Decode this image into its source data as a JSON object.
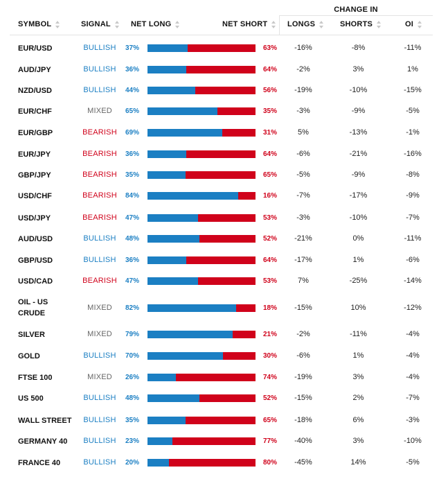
{
  "header": {
    "change_in": "CHANGE IN",
    "symbol": "SYMBOL",
    "signal": "SIGNAL",
    "net_long": "NET LONG",
    "net_short": "NET SHORT",
    "longs": "LONGS",
    "shorts": "SHORTS",
    "oi": "OI"
  },
  "colors": {
    "long": "#1b7fc3",
    "short": "#d0021b",
    "mixed": "#666666"
  },
  "rows": [
    {
      "symbol": "EUR/USD",
      "signal": "BULLISH",
      "net_long": "37%",
      "net_short": "63%",
      "long_pct": 37,
      "longs": "-16%",
      "shorts": "-8%",
      "oi": "-11%"
    },
    {
      "symbol": "AUD/JPY",
      "signal": "BULLISH",
      "net_long": "36%",
      "net_short": "64%",
      "long_pct": 36,
      "longs": "-2%",
      "shorts": "3%",
      "oi": "1%"
    },
    {
      "symbol": "NZD/USD",
      "signal": "BULLISH",
      "net_long": "44%",
      "net_short": "56%",
      "long_pct": 44,
      "longs": "-19%",
      "shorts": "-10%",
      "oi": "-15%"
    },
    {
      "symbol": "EUR/CHF",
      "signal": "MIXED",
      "net_long": "65%",
      "net_short": "35%",
      "long_pct": 65,
      "longs": "-3%",
      "shorts": "-9%",
      "oi": "-5%"
    },
    {
      "symbol": "EUR/GBP",
      "signal": "BEARISH",
      "net_long": "69%",
      "net_short": "31%",
      "long_pct": 69,
      "longs": "5%",
      "shorts": "-13%",
      "oi": "-1%"
    },
    {
      "symbol": "EUR/JPY",
      "signal": "BEARISH",
      "net_long": "36%",
      "net_short": "64%",
      "long_pct": 36,
      "longs": "-6%",
      "shorts": "-21%",
      "oi": "-16%"
    },
    {
      "symbol": "GBP/JPY",
      "signal": "BEARISH",
      "net_long": "35%",
      "net_short": "65%",
      "long_pct": 35,
      "longs": "-5%",
      "shorts": "-9%",
      "oi": "-8%"
    },
    {
      "symbol": "USD/CHF",
      "signal": "BEARISH",
      "net_long": "84%",
      "net_short": "16%",
      "long_pct": 84,
      "longs": "-7%",
      "shorts": "-17%",
      "oi": "-9%"
    },
    {
      "symbol": "USD/JPY",
      "signal": "BEARISH",
      "net_long": "47%",
      "net_short": "53%",
      "long_pct": 47,
      "longs": "-3%",
      "shorts": "-10%",
      "oi": "-7%"
    },
    {
      "symbol": "AUD/USD",
      "signal": "BULLISH",
      "net_long": "48%",
      "net_short": "52%",
      "long_pct": 48,
      "longs": "-21%",
      "shorts": "0%",
      "oi": "-11%"
    },
    {
      "symbol": "GBP/USD",
      "signal": "BULLISH",
      "net_long": "36%",
      "net_short": "64%",
      "long_pct": 36,
      "longs": "-17%",
      "shorts": "1%",
      "oi": "-6%"
    },
    {
      "symbol": "USD/CAD",
      "signal": "BEARISH",
      "net_long": "47%",
      "net_short": "53%",
      "long_pct": 47,
      "longs": "7%",
      "shorts": "-25%",
      "oi": "-14%"
    },
    {
      "symbol": "OIL - US CRUDE",
      "signal": "MIXED",
      "net_long": "82%",
      "net_short": "18%",
      "long_pct": 82,
      "longs": "-15%",
      "shorts": "10%",
      "oi": "-12%"
    },
    {
      "symbol": "SILVER",
      "signal": "MIXED",
      "net_long": "79%",
      "net_short": "21%",
      "long_pct": 79,
      "longs": "-2%",
      "shorts": "-11%",
      "oi": "-4%"
    },
    {
      "symbol": "GOLD",
      "signal": "BULLISH",
      "net_long": "70%",
      "net_short": "30%",
      "long_pct": 70,
      "longs": "-6%",
      "shorts": "1%",
      "oi": "-4%"
    },
    {
      "symbol": "FTSE 100",
      "signal": "MIXED",
      "net_long": "26%",
      "net_short": "74%",
      "long_pct": 26,
      "longs": "-19%",
      "shorts": "3%",
      "oi": "-4%"
    },
    {
      "symbol": "US 500",
      "signal": "BULLISH",
      "net_long": "48%",
      "net_short": "52%",
      "long_pct": 48,
      "longs": "-15%",
      "shorts": "2%",
      "oi": "-7%"
    },
    {
      "symbol": "WALL STREET",
      "signal": "BULLISH",
      "net_long": "35%",
      "net_short": "65%",
      "long_pct": 35,
      "longs": "-18%",
      "shorts": "6%",
      "oi": "-3%"
    },
    {
      "symbol": "GERMANY 40",
      "signal": "BULLISH",
      "net_long": "23%",
      "net_short": "77%",
      "long_pct": 23,
      "longs": "-40%",
      "shorts": "3%",
      "oi": "-10%"
    },
    {
      "symbol": "FRANCE 40",
      "signal": "BULLISH",
      "net_long": "20%",
      "net_short": "80%",
      "long_pct": 20,
      "longs": "-45%",
      "shorts": "14%",
      "oi": "-5%"
    }
  ]
}
